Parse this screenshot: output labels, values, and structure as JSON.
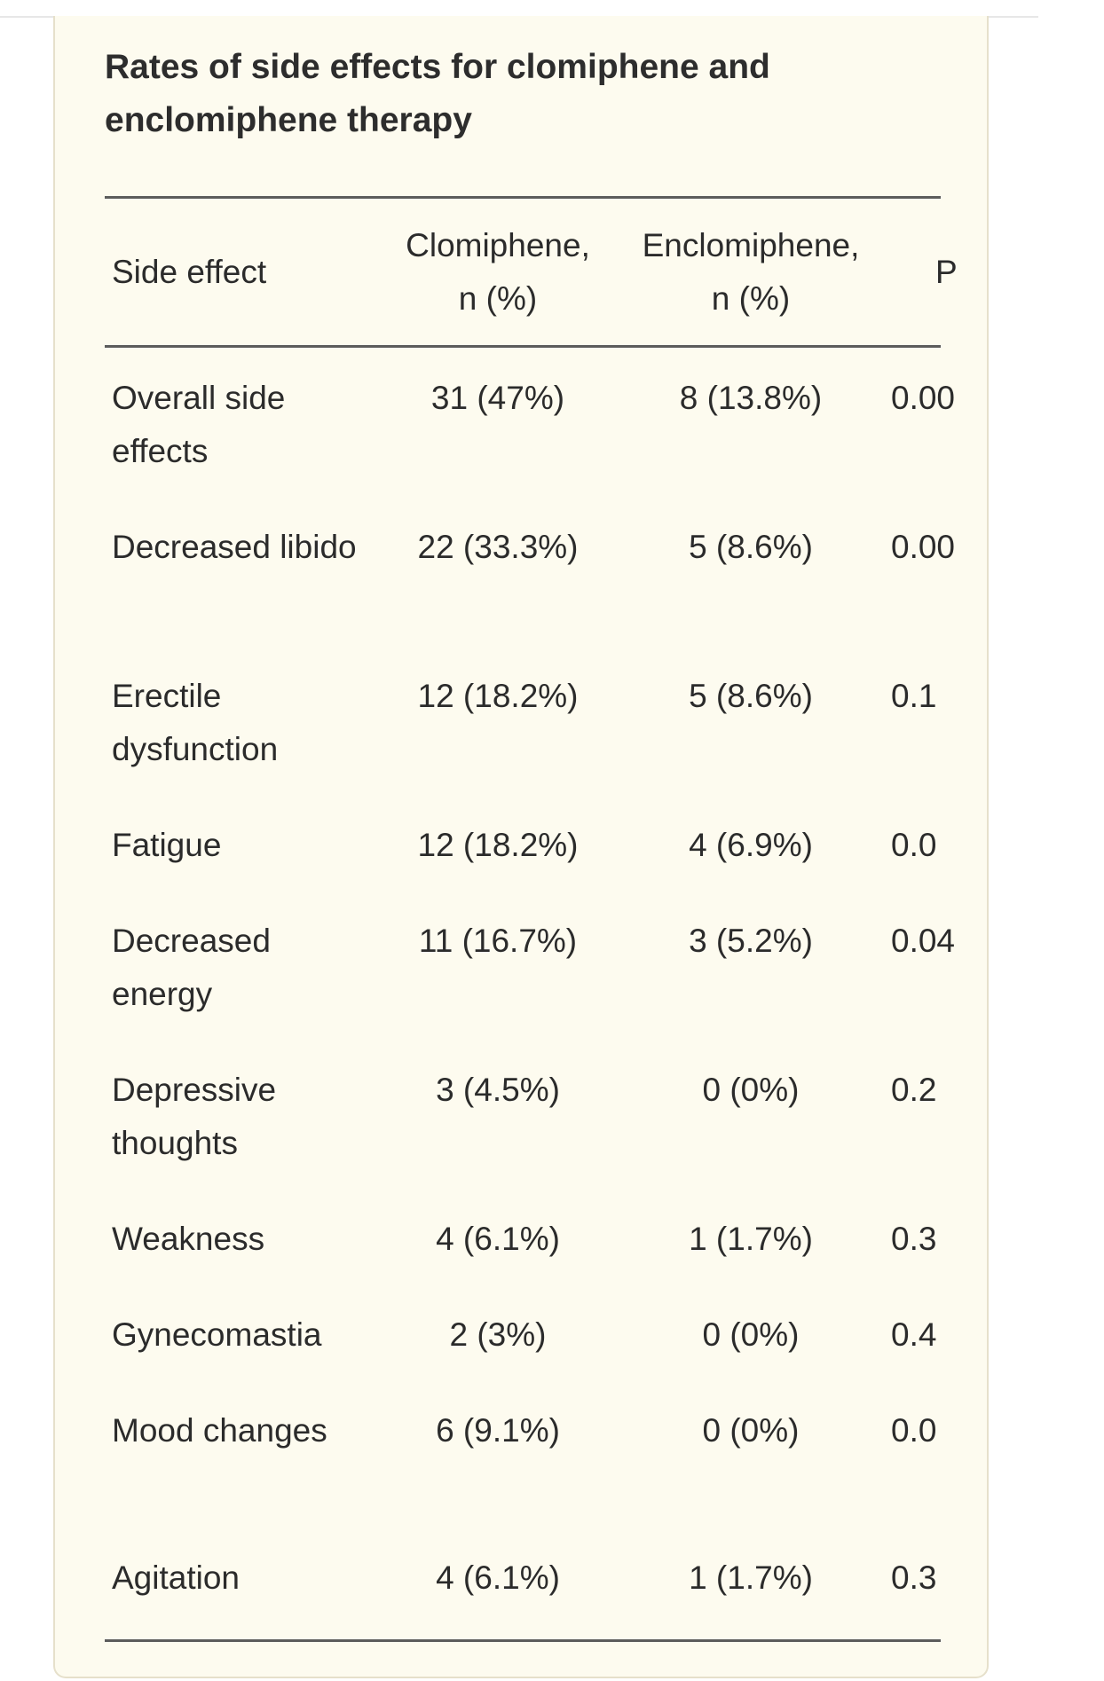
{
  "table": {
    "title_line1": "Rates of side effects for clomiphene and",
    "title_line2": "enclomiphene therapy",
    "headers": {
      "side_effect": "Side effect",
      "clomiphene_line1": "Clomiphene,",
      "clomiphene_line2": "n (%)",
      "enclomiphene_line1": "Enclomiphene,",
      "enclomiphene_line2": "n (%)",
      "p": "P"
    },
    "rows": [
      {
        "effect": "Overall side effects",
        "clomiphene": "31 (47%)",
        "enclomiphene": "8 (13.8%)",
        "p": "0.00"
      },
      {
        "effect": "Decreased libido",
        "clomiphene": "22 (33.3%)",
        "enclomiphene": "5 (8.6%)",
        "p": "0.00"
      },
      {
        "effect": "Erectile dysfunction",
        "clomiphene": "12 (18.2%)",
        "enclomiphene": "5 (8.6%)",
        "p": "0.1"
      },
      {
        "effect": "Fatigue",
        "clomiphene": "12 (18.2%)",
        "enclomiphene": "4 (6.9%)",
        "p": "0.0"
      },
      {
        "effect": "Decreased energy",
        "clomiphene": "11 (16.7%)",
        "enclomiphene": "3 (5.2%)",
        "p": "0.04"
      },
      {
        "effect": "Depressive thoughts",
        "clomiphene": "3 (4.5%)",
        "enclomiphene": "0 (0%)",
        "p": "0.2"
      },
      {
        "effect": "Weakness",
        "clomiphene": "4 (6.1%)",
        "enclomiphene": "1 (1.7%)",
        "p": "0.3"
      },
      {
        "effect": "Gynecomastia",
        "clomiphene": "2 (3%)",
        "enclomiphene": "0 (0%)",
        "p": "0.4"
      },
      {
        "effect": "Mood changes",
        "clomiphene": "6 (9.1%)",
        "enclomiphene": "0 (0%)",
        "p": "0.0"
      },
      {
        "effect": "Agitation",
        "clomiphene": "4 (6.1%)",
        "enclomiphene": "1 (1.7%)",
        "p": "0.3"
      }
    ]
  }
}
